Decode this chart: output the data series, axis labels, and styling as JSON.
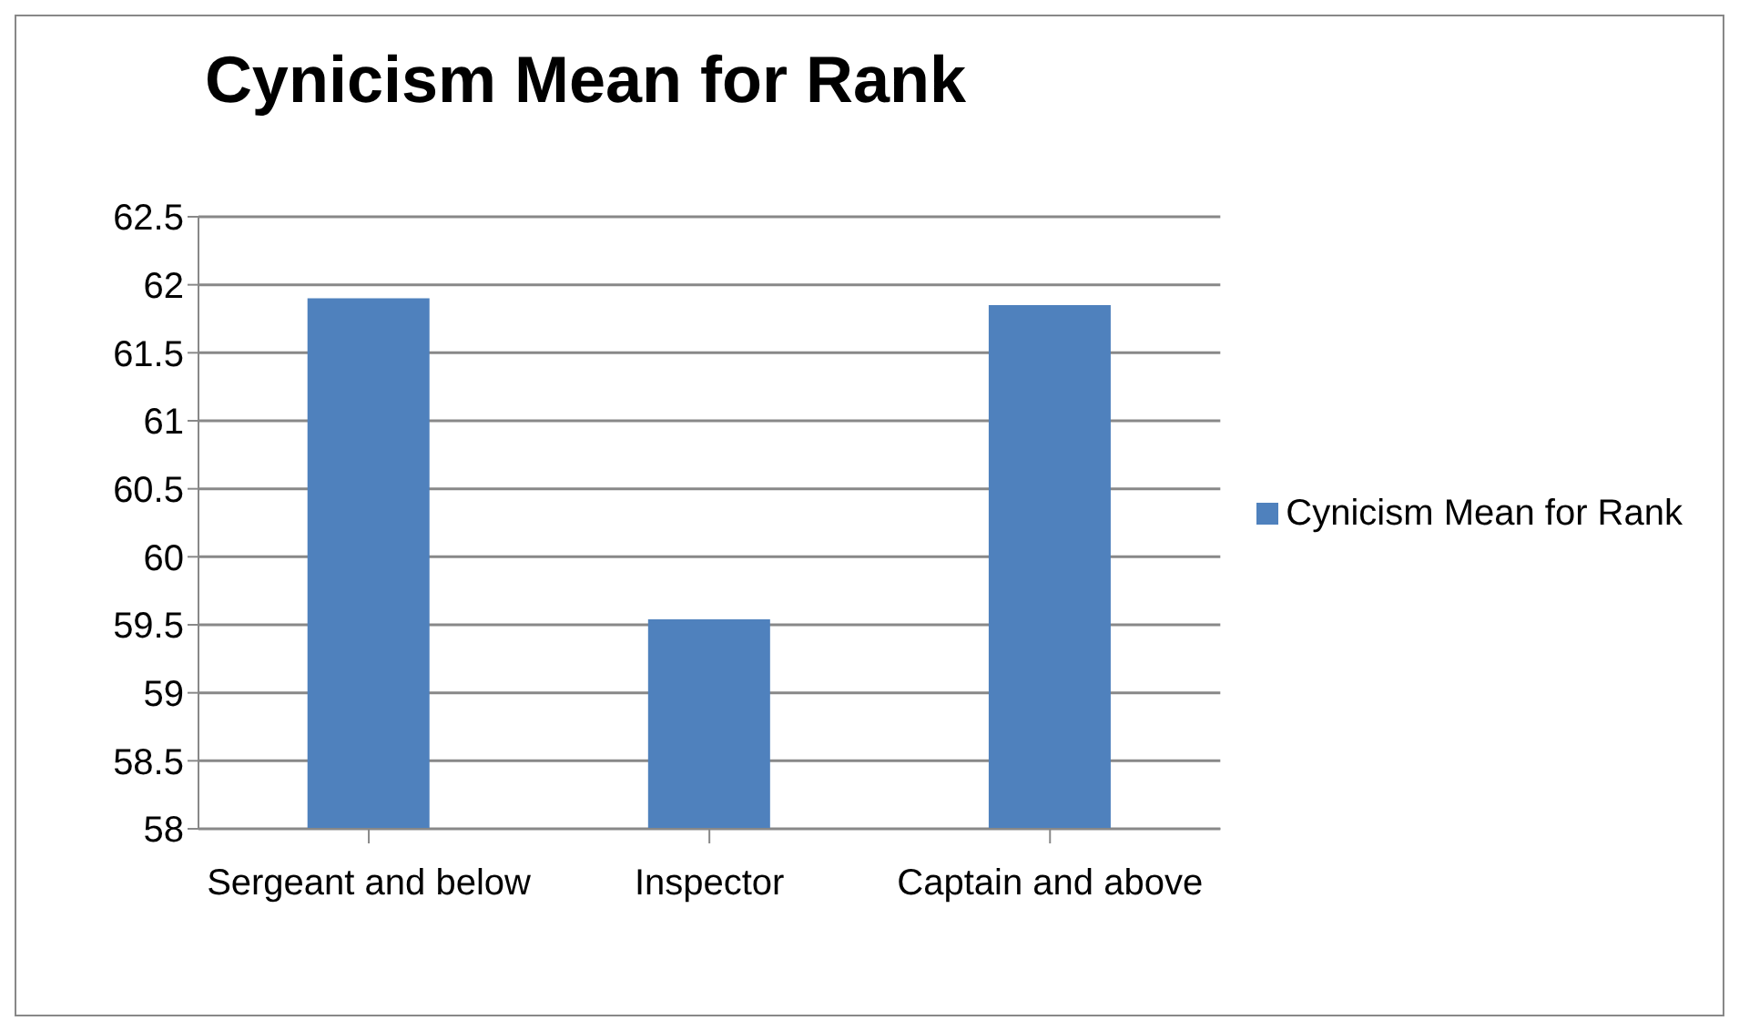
{
  "chart_data": {
    "type": "bar",
    "title": "Cynicism Mean for Rank",
    "categories": [
      "Sergeant and below",
      "Inspector",
      "Captain and above"
    ],
    "series": [
      {
        "name": "Cynicism Mean for Rank",
        "color": "#4f81bd",
        "values": [
          61.9,
          59.54,
          61.85
        ]
      }
    ],
    "ylim": [
      58,
      62.5
    ],
    "yticks": [
      58,
      58.5,
      59,
      59.5,
      60,
      60.5,
      61,
      61.5,
      62,
      62.5
    ],
    "grid": "y",
    "legend": "right"
  }
}
